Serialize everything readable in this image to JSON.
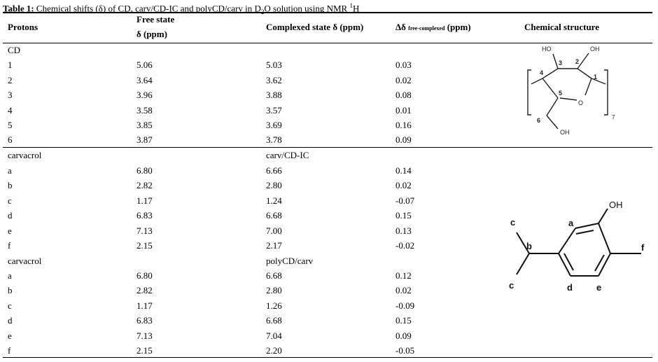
{
  "caption": {
    "label": "Table 1:",
    "text_a": " Chemical shifts (δ) of CD, carv/CD-IC and polyCD/carv in D",
    "text_b": "O solution using NMR ",
    "text_c": "H",
    "sub2": "2",
    "sup1": "1"
  },
  "headers": {
    "protons": "Protons",
    "free_line1": "Free state",
    "free_line2": "δ (ppm)",
    "complexed": "Complexed state δ (ppm)",
    "delta_prefix": "Δδ",
    "delta_sub": "free-complexed",
    "delta_suffix": "(ppm)",
    "structure": "Chemical structure"
  },
  "sections": [
    {
      "name": "CD",
      "complexed_name": "",
      "rows": [
        {
          "proton": "1",
          "free": "5.06",
          "complexed": "5.03",
          "delta": "0.03"
        },
        {
          "proton": "2",
          "free": "3.64",
          "complexed": "3.62",
          "delta": "0.02"
        },
        {
          "proton": "3",
          "free": "3.96",
          "complexed": "3.88",
          "delta": "0.08"
        },
        {
          "proton": "4",
          "free": "3.58",
          "complexed": "3.57",
          "delta": "0.01"
        },
        {
          "proton": "5",
          "free": "3.85",
          "complexed": "3.69",
          "delta": "0.16"
        },
        {
          "proton": "6",
          "free": "3.87",
          "complexed": "3.78",
          "delta": "0.09"
        }
      ]
    },
    {
      "name": "carvacrol",
      "complexed_name": "carv/CD-IC",
      "rows": [
        {
          "proton": "a",
          "free": "6.80",
          "complexed": "6.66",
          "delta": "0.14"
        },
        {
          "proton": "b",
          "free": "2.82",
          "complexed": "2.80",
          "delta": "0.02"
        },
        {
          "proton": "c",
          "free": "1.17",
          "complexed": "1.24",
          "delta": "-0.07"
        },
        {
          "proton": "d",
          "free": "6.83",
          "complexed": "6.68",
          "delta": "0.15"
        },
        {
          "proton": "e",
          "free": "7.13",
          "complexed": "7.00",
          "delta": "0.13"
        },
        {
          "proton": "f",
          "free": "2.15",
          "complexed": "2.17",
          "delta": "-0.02"
        }
      ]
    },
    {
      "name": "carvacrol",
      "complexed_name": "polyCD/carv",
      "rows": [
        {
          "proton": "a",
          "free": "6.80",
          "complexed": "6.68",
          "delta": "0.12"
        },
        {
          "proton": "b",
          "free": "2.82",
          "complexed": "2.80",
          "delta": "0.02"
        },
        {
          "proton": "c",
          "free": "1.17",
          "complexed": "1.26",
          "delta": "-0.09"
        },
        {
          "proton": "d",
          "free": "6.83",
          "complexed": "6.68",
          "delta": "0.15"
        },
        {
          "proton": "e",
          "free": "7.13",
          "complexed": "7.04",
          "delta": "0.09"
        },
        {
          "proton": "f",
          "free": "2.15",
          "complexed": "2.20",
          "delta": "-0.05"
        }
      ]
    }
  ],
  "structures": {
    "cd": {
      "ho": "HO",
      "oh_top": "OH",
      "ring_o": "O",
      "oh_bottom": "OH",
      "n1": "1",
      "n2": "2",
      "n3": "3",
      "n4": "4",
      "n5": "5",
      "n6": "6",
      "repeat": "7"
    },
    "carvacrol": {
      "oh": "OH",
      "a": "a",
      "b": "b",
      "c_top": "c",
      "c_bottom": "c",
      "d": "d",
      "e": "e",
      "f": "f"
    }
  }
}
